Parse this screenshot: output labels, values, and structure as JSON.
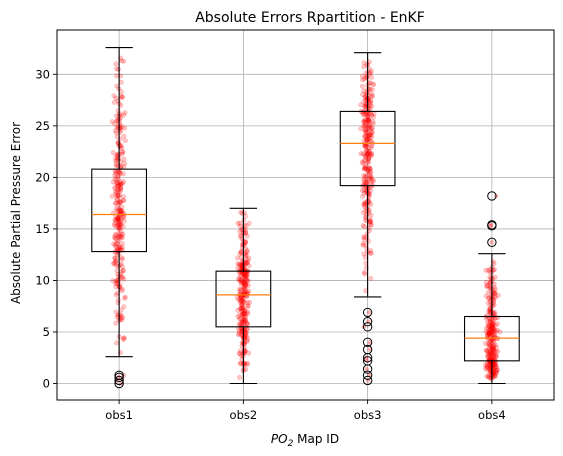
{
  "chart_data": {
    "type": "box",
    "title": "Absolute Errors Rpartition - EnKF",
    "xlabel": {
      "main": "PO",
      "sub": "2",
      "rest": " Map ID"
    },
    "ylabel": "Absolute Partial Pressure Error",
    "categories": [
      "obs1",
      "obs2",
      "obs3",
      "obs4"
    ],
    "ylim": [
      -1.6,
      34.3
    ],
    "yticks": [
      0,
      5,
      10,
      15,
      20,
      25,
      30
    ],
    "grid": true,
    "colors": {
      "box": "#000000",
      "median": "#ff7f0e",
      "points": "#ff0000",
      "grid": "#b0b0b0"
    },
    "boxes": [
      {
        "name": "obs1",
        "q1": 12.8,
        "median": 16.4,
        "q3": 20.8,
        "whisker_low": 2.6,
        "whisker_high": 32.6,
        "outliers": [
          0.0,
          0.3,
          0.6,
          0.8
        ]
      },
      {
        "name": "obs2",
        "q1": 5.5,
        "median": 8.6,
        "q3": 10.9,
        "whisker_low": 0.0,
        "whisker_high": 17.0,
        "outliers": []
      },
      {
        "name": "obs3",
        "q1": 19.2,
        "median": 23.3,
        "q3": 26.4,
        "whisker_low": 8.4,
        "whisker_high": 32.1,
        "outliers": [
          0.3,
          0.8,
          1.4,
          2.2,
          2.5,
          3.3,
          4.0,
          5.5,
          6.0,
          6.9
        ]
      },
      {
        "name": "obs4",
        "q1": 2.2,
        "median": 4.4,
        "q3": 6.5,
        "whisker_low": 0.0,
        "whisker_high": 12.6,
        "outliers": [
          13.7,
          15.3,
          15.4,
          18.2
        ]
      }
    ]
  }
}
